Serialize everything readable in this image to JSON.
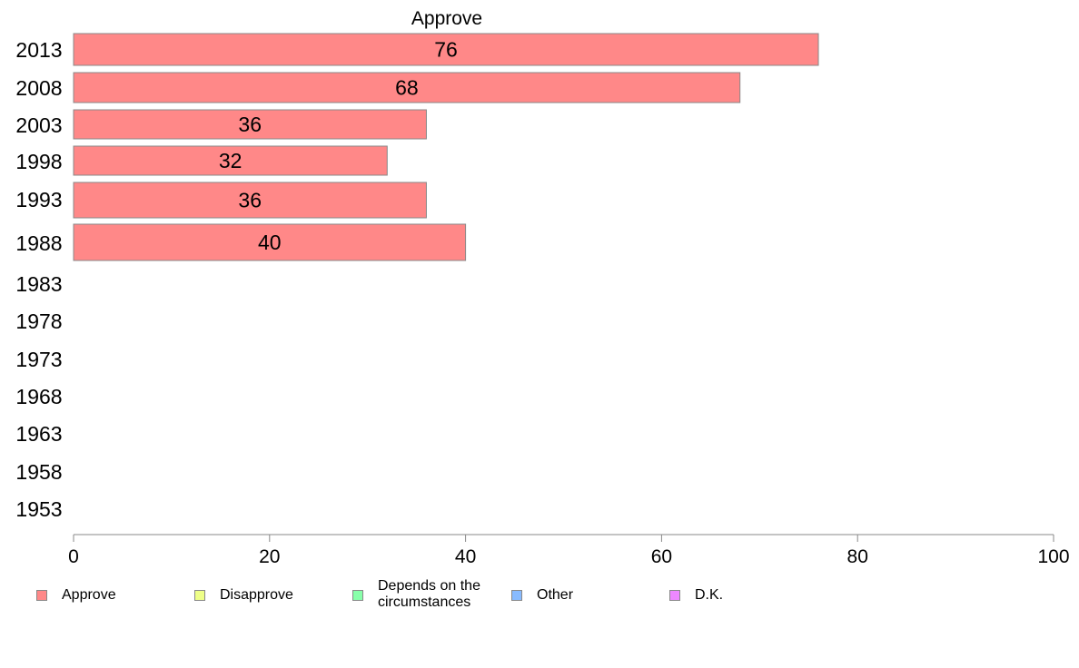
{
  "chart_data": {
    "type": "bar",
    "orientation": "horizontal",
    "title": "Approve",
    "categories": [
      "2013",
      "2008",
      "2003",
      "1998",
      "1993",
      "1988",
      "1983",
      "1978",
      "1973",
      "1968",
      "1963",
      "1958",
      "1953"
    ],
    "series": [
      {
        "name": "Approve",
        "color": "#ff8888",
        "values": [
          76,
          68,
          36,
          32,
          36,
          40,
          null,
          null,
          null,
          null,
          null,
          null,
          null
        ]
      }
    ],
    "data_labels": [
      "76",
      "68",
      "36",
      "32",
      "36",
      "40",
      "",
      "",
      "",
      "",
      "",
      "",
      ""
    ],
    "xlim": [
      0,
      100
    ],
    "xticks": [
      "0",
      "20",
      "40",
      "60",
      "80",
      "100"
    ],
    "grid": false,
    "legend_position": "bottom"
  },
  "legend": [
    {
      "label": "Approve",
      "color": "#ff8888"
    },
    {
      "label": "Disapprove",
      "color": "#eeff88"
    },
    {
      "label": "Depends on the circumstances",
      "color": "#88ffaa"
    },
    {
      "label": "Other",
      "color": "#88bbff"
    },
    {
      "label": "D.K.",
      "color": "#ee88ff"
    }
  ]
}
